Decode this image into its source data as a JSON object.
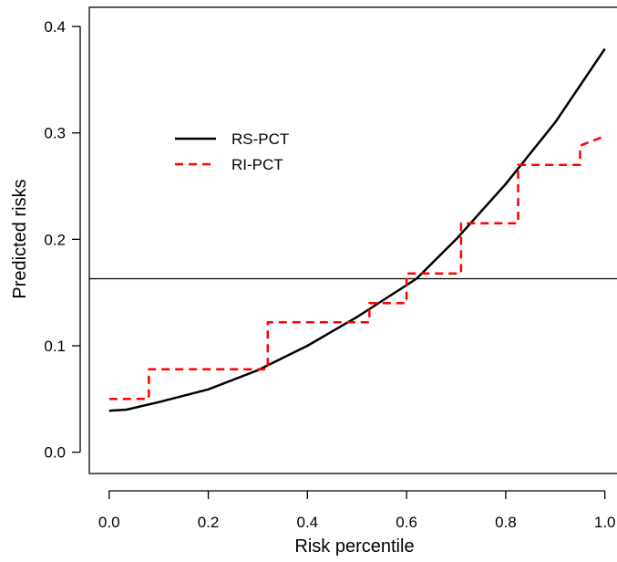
{
  "chart_data": {
    "type": "line",
    "title": "",
    "xlabel": "Risk percentile",
    "ylabel": "Predicted risks",
    "xlim": [
      -0.04,
      1.03
    ],
    "ylim": [
      -0.02,
      0.418
    ],
    "xticks": [
      0.0,
      0.2,
      0.4,
      0.6,
      0.8,
      1.0
    ],
    "xtick_labels": [
      "0.0",
      "0.2",
      "0.4",
      "0.6",
      "0.8",
      "1.0"
    ],
    "yticks": [
      0.0,
      0.1,
      0.2,
      0.3,
      0.4
    ],
    "ytick_labels": [
      "0.0",
      "0.1",
      "0.2",
      "0.3",
      "0.4"
    ],
    "grid": false,
    "legend_position": "upper-left",
    "reference_line": {
      "orientation": "horizontal",
      "y": 0.163
    },
    "series": [
      {
        "name": "RS-PCT",
        "style": "solid",
        "color": "#000000",
        "x": [
          0.0,
          0.035,
          0.1,
          0.2,
          0.3,
          0.4,
          0.5,
          0.6,
          0.62,
          0.7,
          0.8,
          0.9,
          1.0
        ],
        "y": [
          0.039,
          0.04,
          0.047,
          0.059,
          0.077,
          0.1,
          0.127,
          0.157,
          0.163,
          0.2,
          0.252,
          0.31,
          0.379
        ]
      },
      {
        "name": "RI-PCT",
        "style": "dashed",
        "color": "#ff0000",
        "x": [
          0.0,
          0.08,
          0.08,
          0.32,
          0.32,
          0.525,
          0.525,
          0.6,
          0.6,
          0.71,
          0.71,
          0.825,
          0.825,
          0.95,
          0.95,
          1.0
        ],
        "y": [
          0.05,
          0.05,
          0.078,
          0.078,
          0.122,
          0.122,
          0.14,
          0.14,
          0.168,
          0.168,
          0.215,
          0.215,
          0.27,
          0.27,
          0.288,
          0.297
        ]
      }
    ]
  }
}
